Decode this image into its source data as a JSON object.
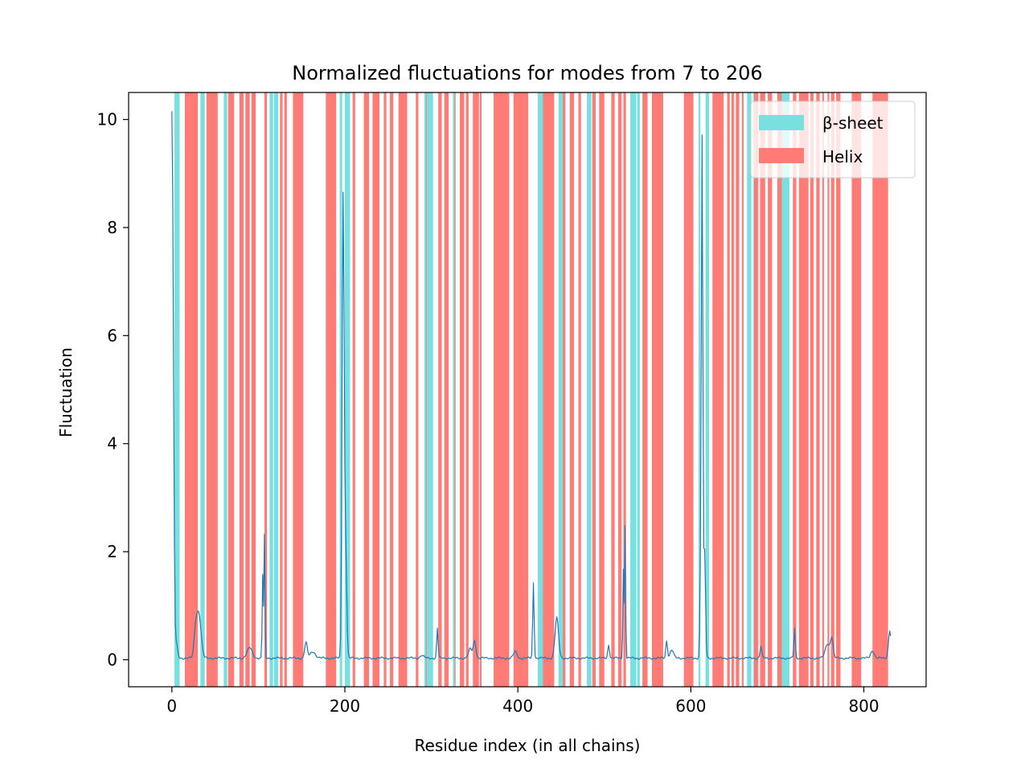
{
  "chart_data": {
    "type": "line",
    "title": "Normalized fluctuations for modes from 7 to 206",
    "xlabel": "Residue index (in all chains)",
    "ylabel": "Fluctuation",
    "xlim": [
      -50,
      872
    ],
    "ylim": [
      -0.5,
      10.5
    ],
    "x_ticks": [
      0,
      200,
      400,
      600,
      800
    ],
    "y_ticks": [
      0,
      2,
      4,
      6,
      8,
      10
    ],
    "grid": false,
    "legend_position": "top-right",
    "legend": [
      {
        "label": "β-sheet",
        "color": "#79dfdf"
      },
      {
        "label": "Helix",
        "color": "#ff7b76"
      }
    ],
    "line_color": "#1f77b4",
    "series": [
      {
        "baseline": 0.03,
        "x_range": [
          0,
          831
        ],
        "peaks": [
          {
            "x": 0,
            "y": 10.02,
            "w": 1.5
          },
          {
            "x": 2,
            "y": 1.0,
            "w": 1.0
          },
          {
            "x": 5,
            "y": 0.3,
            "w": 1.5
          },
          {
            "x": 27,
            "y": 0.3,
            "w": 1.5
          },
          {
            "x": 30,
            "y": 0.78,
            "w": 2.5
          },
          {
            "x": 33,
            "y": 0.3,
            "w": 2.0
          },
          {
            "x": 90,
            "y": 0.22,
            "w": 3.0
          },
          {
            "x": 105,
            "y": 1.57,
            "w": 0.6
          },
          {
            "x": 107,
            "y": 2.3,
            "w": 0.6
          },
          {
            "x": 155,
            "y": 0.32,
            "w": 1.5
          },
          {
            "x": 163,
            "y": 0.15,
            "w": 3.0
          },
          {
            "x": 198,
            "y": 8.58,
            "w": 1.2
          },
          {
            "x": 201,
            "y": 2.0,
            "w": 1.2
          },
          {
            "x": 289,
            "y": 0.08,
            "w": 2.0
          },
          {
            "x": 307,
            "y": 0.58,
            "w": 0.8
          },
          {
            "x": 345,
            "y": 0.2,
            "w": 2.0
          },
          {
            "x": 350,
            "y": 0.35,
            "w": 1.5
          },
          {
            "x": 397,
            "y": 0.15,
            "w": 2.0
          },
          {
            "x": 418,
            "y": 1.43,
            "w": 0.8
          },
          {
            "x": 445,
            "y": 0.78,
            "w": 2.0
          },
          {
            "x": 505,
            "y": 0.28,
            "w": 1.0
          },
          {
            "x": 522,
            "y": 1.68,
            "w": 0.6
          },
          {
            "x": 524,
            "y": 2.48,
            "w": 0.6
          },
          {
            "x": 572,
            "y": 0.35,
            "w": 1.0
          },
          {
            "x": 578,
            "y": 0.18,
            "w": 2.0
          },
          {
            "x": 611,
            "y": 1.0,
            "w": 0.8
          },
          {
            "x": 613,
            "y": 9.65,
            "w": 0.9
          },
          {
            "x": 616,
            "y": 2.0,
            "w": 1.0
          },
          {
            "x": 681,
            "y": 0.25,
            "w": 1.0
          },
          {
            "x": 720,
            "y": 0.58,
            "w": 0.8
          },
          {
            "x": 758,
            "y": 0.3,
            "w": 2.5
          },
          {
            "x": 763,
            "y": 0.4,
            "w": 1.5
          },
          {
            "x": 810,
            "y": 0.17,
            "w": 2.0
          },
          {
            "x": 830,
            "y": 0.55,
            "w": 1.5
          }
        ]
      }
    ],
    "spans": {
      "helix": [
        [
          15,
          30
        ],
        [
          40,
          53
        ],
        [
          65,
          72
        ],
        [
          78,
          83
        ],
        [
          85,
          90
        ],
        [
          92,
          97
        ],
        [
          107,
          110
        ],
        [
          125,
          128
        ],
        [
          130,
          133
        ],
        [
          140,
          152
        ],
        [
          178,
          190
        ],
        [
          209,
          212
        ],
        [
          222,
          228
        ],
        [
          232,
          240
        ],
        [
          245,
          248
        ],
        [
          252,
          256
        ],
        [
          262,
          272
        ],
        [
          282,
          285
        ],
        [
          293,
          295
        ],
        [
          308,
          312
        ],
        [
          315,
          320
        ],
        [
          325,
          328
        ],
        [
          333,
          338
        ],
        [
          340,
          343
        ],
        [
          348,
          355
        ],
        [
          356,
          358
        ],
        [
          372,
          390
        ],
        [
          395,
          412
        ],
        [
          428,
          442
        ],
        [
          451,
          455
        ],
        [
          460,
          465
        ],
        [
          470,
          473
        ],
        [
          480,
          483
        ],
        [
          486,
          490
        ],
        [
          494,
          500
        ],
        [
          508,
          512
        ],
        [
          516,
          520
        ],
        [
          522,
          525
        ],
        [
          544,
          550
        ],
        [
          555,
          568
        ],
        [
          592,
          603
        ],
        [
          625,
          638
        ],
        [
          642,
          645
        ],
        [
          647,
          650
        ],
        [
          652,
          656
        ],
        [
          659,
          661
        ],
        [
          673,
          678
        ],
        [
          680,
          686
        ],
        [
          689,
          694
        ],
        [
          700,
          706
        ],
        [
          718,
          722
        ],
        [
          725,
          736
        ],
        [
          738,
          742
        ],
        [
          745,
          749
        ],
        [
          752,
          754
        ],
        [
          758,
          760
        ],
        [
          762,
          766
        ],
        [
          768,
          773
        ],
        [
          786,
          797
        ],
        [
          810,
          828
        ]
      ],
      "sheet": [
        [
          3,
          9
        ],
        [
          33,
          38
        ],
        [
          60,
          64
        ],
        [
          113,
          117
        ],
        [
          118,
          123
        ],
        [
          194,
          197
        ],
        [
          200,
          206
        ],
        [
          292,
          294
        ],
        [
          295,
          302
        ],
        [
          325,
          327
        ],
        [
          423,
          429
        ],
        [
          447,
          452
        ],
        [
          480,
          485
        ],
        [
          530,
          537
        ],
        [
          538,
          541
        ],
        [
          609,
          611
        ],
        [
          617,
          621
        ],
        [
          665,
          670
        ],
        [
          672,
          673
        ],
        [
          705,
          714
        ]
      ]
    }
  }
}
